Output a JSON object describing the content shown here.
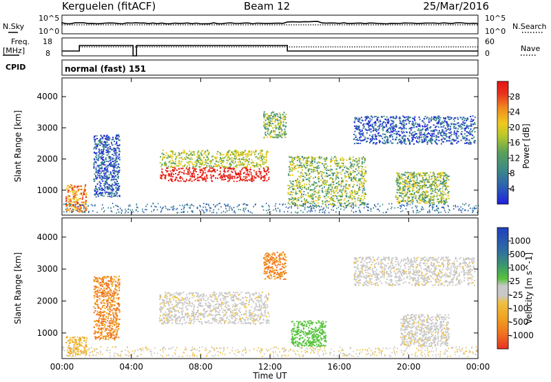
{
  "header": {
    "station": "Kerguelen (fitACF)",
    "beam": "Beam 12",
    "date": "25/Mar/2016"
  },
  "noise_panel": {
    "left_label": "N.Sky",
    "left_ticks": [
      "10^5",
      "10^0"
    ],
    "right_label": "N.Search",
    "right_ticks": [
      "10^5",
      "10^0"
    ]
  },
  "freq_panel": {
    "left_label_line1": "Freq.",
    "left_label_line2": "[MHz]",
    "left_ticks": [
      "18",
      "8"
    ],
    "right_label": "Nave",
    "right_ticks": [
      "60",
      "0"
    ]
  },
  "cpid": {
    "label": "CPID",
    "value": "normal (fast) 151"
  },
  "x_axis": {
    "title": "Time UT",
    "ticks": [
      "00:00",
      "04:00",
      "08:00",
      "12:00",
      "16:00",
      "20:00",
      "00:00"
    ]
  },
  "chart_data": [
    {
      "type": "heatmap",
      "title": "",
      "xlabel": "Time UT",
      "ylabel": "Slant Range [km]",
      "xlim": [
        "00:00",
        "24:00"
      ],
      "ylim": [
        200,
        4600
      ],
      "y_ticks": [
        "1000",
        "2000",
        "3000",
        "4000"
      ],
      "colorbar": {
        "label": "Power [dB]",
        "ticks": [
          "4",
          "8",
          "12",
          "16",
          "20",
          "24",
          "28"
        ],
        "colors": [
          "#1f1fe0",
          "#2b5fb3",
          "#3c8a86",
          "#5aa05a",
          "#b9c92a",
          "#f0c81e",
          "#f08c1e",
          "#e8321e",
          "#e61414"
        ]
      },
      "regions": [
        {
          "start_h": 0.2,
          "end_h": 1.4,
          "range_min": 300,
          "range_max": 1200,
          "level": "high"
        },
        {
          "start_h": 1.8,
          "end_h": 3.3,
          "range_min": 800,
          "range_max": 2800,
          "level": "low"
        },
        {
          "start_h": 5.6,
          "end_h": 11.9,
          "range_min": 1300,
          "range_max": 2300,
          "level": "very high"
        },
        {
          "start_h": 11.6,
          "end_h": 12.9,
          "range_min": 2700,
          "range_max": 3550,
          "level": "medium"
        },
        {
          "start_h": 13.0,
          "end_h": 17.5,
          "range_min": 500,
          "range_max": 2100,
          "level": "medium"
        },
        {
          "start_h": 16.8,
          "end_h": 23.8,
          "range_min": 2500,
          "range_max": 3400,
          "level": "low"
        },
        {
          "start_h": 19.2,
          "end_h": 22.3,
          "range_min": 600,
          "range_max": 1600,
          "level": "medium"
        }
      ]
    },
    {
      "type": "heatmap",
      "title": "",
      "xlabel": "Time UT",
      "ylabel": "Slant Range [km]",
      "xlim": [
        "00:00",
        "24:00"
      ],
      "ylim": [
        200,
        4600
      ],
      "y_ticks": [
        "1000",
        "2000",
        "3000",
        "4000"
      ],
      "colorbar": {
        "label": "Velocity [m s^-1]",
        "ticks": [
          "1000",
          "500",
          "100",
          "25",
          "-25",
          "-100",
          "-500",
          "-1000"
        ],
        "colors": [
          "#2040c0",
          "#2f6fa0",
          "#3c9a6a",
          "#55c23a",
          "#c8c8c8",
          "#f0c040",
          "#f0a020",
          "#f07020",
          "#e83020"
        ]
      },
      "regions": [
        {
          "start_h": 0.2,
          "end_h": 1.4,
          "range_min": 300,
          "range_max": 900,
          "velocity": "-25 to -100"
        },
        {
          "start_h": 1.8,
          "end_h": 3.3,
          "range_min": 800,
          "range_max": 2800,
          "velocity": "-100 to -500"
        },
        {
          "start_h": 5.6,
          "end_h": 11.9,
          "range_min": 1300,
          "range_max": 2300,
          "velocity": "25 to -25"
        },
        {
          "start_h": 11.6,
          "end_h": 12.9,
          "range_min": 2700,
          "range_max": 3550,
          "velocity": "-100 to -500"
        },
        {
          "start_h": 13.2,
          "end_h": 15.2,
          "range_min": 600,
          "range_max": 1400,
          "velocity": "100 to 25"
        },
        {
          "start_h": 16.8,
          "end_h": 23.8,
          "range_min": 2500,
          "range_max": 3400,
          "velocity": "25 to -25"
        },
        {
          "start_h": 19.5,
          "end_h": 22.3,
          "range_min": 600,
          "range_max": 1600,
          "velocity": "25 to -25"
        }
      ]
    }
  ]
}
